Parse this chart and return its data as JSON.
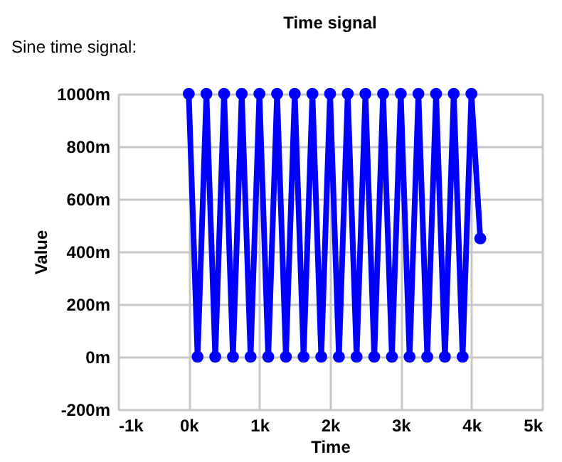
{
  "chart_data": {
    "type": "line",
    "title": "Time signal",
    "xlabel": "Time",
    "ylabel": "Value",
    "annotations": [
      "Sine time signal:"
    ],
    "x": [
      0,
      125,
      250,
      375,
      500,
      625,
      750,
      875,
      1000,
      1125,
      1250,
      1375,
      1500,
      1625,
      1750,
      1875,
      2000,
      2125,
      2250,
      2375,
      2500,
      2625,
      2750,
      2875,
      3000,
      3125,
      3250,
      3375,
      3500,
      3625,
      3750,
      3875,
      4000,
      4125
    ],
    "series": [
      {
        "color": "#0000ff",
        "values": [
          1000,
          0,
          1000,
          0,
          1000,
          0,
          1000,
          0,
          1000,
          0,
          1000,
          0,
          1000,
          0,
          1000,
          0,
          1000,
          0,
          1000,
          0,
          1000,
          0,
          1000,
          0,
          1000,
          0,
          1000,
          0,
          1000,
          0,
          1000,
          0,
          1000,
          450
        ]
      }
    ],
    "xlim": [
      -1000,
      5000
    ],
    "xticks": [
      {
        "value": -1000,
        "label": "-1k"
      },
      {
        "value": 0,
        "label": "0k"
      },
      {
        "value": 1000,
        "label": "1k"
      },
      {
        "value": 2000,
        "label": "2k"
      },
      {
        "value": 3000,
        "label": "3k"
      },
      {
        "value": 4000,
        "label": "4k"
      },
      {
        "value": 5000,
        "label": "5k"
      }
    ],
    "ylim": [
      -200,
      1000
    ],
    "yticks": [
      {
        "value": -200,
        "label": "-200m"
      },
      {
        "value": 0,
        "label": "0m"
      },
      {
        "value": 200,
        "label": "200m"
      },
      {
        "value": 400,
        "label": "400m"
      },
      {
        "value": 600,
        "label": "600m"
      },
      {
        "value": 800,
        "label": "800m"
      },
      {
        "value": 1000,
        "label": "1000m"
      }
    ],
    "grid": true,
    "marker": "circle",
    "line_style": "solid"
  }
}
